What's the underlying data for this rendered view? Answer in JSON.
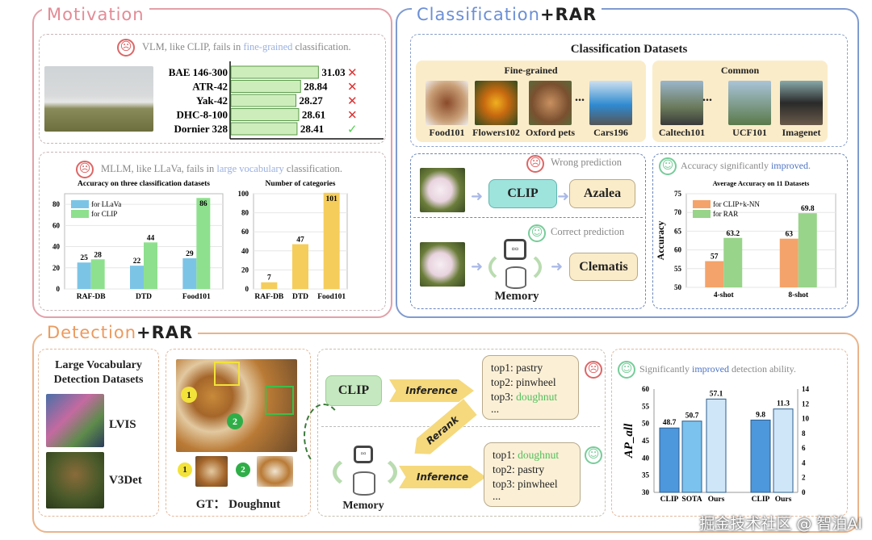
{
  "colors": {
    "motivation": "#e3a0a8",
    "classification": "#7f9bd0",
    "detection": "#eab48a",
    "llava": "#7cc4e6",
    "clip": "#8ee08e",
    "categories": "#f5cd5a",
    "knn": "#f4a36a",
    "rar": "#98d48a",
    "ap": "#5aa3e0"
  },
  "motivation": {
    "title": "Motivation",
    "vlm_note": {
      "pre": "VLM, like CLIP, fails in ",
      "highlight": "fine-grained",
      "post": " classification."
    },
    "fine_grained": {
      "rows": [
        {
          "label": "BAE 146-300",
          "value": 31.03,
          "mark": "✕"
        },
        {
          "label": "ATR-42",
          "value": 28.84,
          "mark": "✕"
        },
        {
          "label": "Yak-42",
          "value": 28.27,
          "mark": "✕"
        },
        {
          "label": "DHC-8-100",
          "value": 28.61,
          "mark": "✕"
        },
        {
          "label": "Dornier 328",
          "value": 28.41,
          "mark": "✓"
        }
      ]
    },
    "mllm_note": {
      "pre": "MLLM, like LLaVa, fails in ",
      "highlight": "large vocabulary",
      "post": " classification."
    }
  },
  "chart_data": [
    {
      "type": "bar",
      "title": "Accuracy on three classification datasets",
      "categories": [
        "RAF-DB",
        "DTD",
        "Food101"
      ],
      "series": [
        {
          "name": "for LLaVa",
          "values": [
            25,
            22,
            29
          ]
        },
        {
          "name": "for CLIP",
          "values": [
            28,
            44,
            86
          ]
        }
      ],
      "ylim": [
        0,
        90
      ],
      "yticks": [
        0,
        20,
        40,
        60,
        80
      ],
      "legend": "top-left",
      "grid": true
    },
    {
      "type": "bar",
      "title": "Number of categories",
      "categories": [
        "RAF-DB",
        "DTD",
        "Food101"
      ],
      "values": [
        7,
        47,
        101
      ],
      "ylim": [
        0,
        100
      ],
      "yticks": [
        0,
        20,
        40,
        60,
        80,
        100
      ],
      "grid": true
    },
    {
      "type": "bar",
      "title": "Average Accuracy on 11 Datasets",
      "ylabel": "Accuracy",
      "categories": [
        "4-shot",
        "8-shot"
      ],
      "series": [
        {
          "name": "for CLIP+k-NN",
          "values": [
            57,
            63
          ]
        },
        {
          "name": "for RAR",
          "values": [
            63.2,
            69.8
          ]
        }
      ],
      "ylim": [
        50,
        75
      ],
      "yticks": [
        50,
        55,
        60,
        65,
        70,
        75
      ],
      "legend": "top-left",
      "grid": true
    },
    {
      "type": "bar",
      "ylabel": "AP_all",
      "categories": [
        "CLIP",
        "SOTA",
        "Ours",
        "CLIP",
        "Ours"
      ],
      "values": [
        48.7,
        50.7,
        57.1,
        9.8,
        11.3
      ],
      "left_axis": [
        30,
        60
      ],
      "left_ticks": [
        30,
        35,
        40,
        45,
        50,
        55,
        60
      ],
      "right_axis": [
        0,
        14
      ],
      "right_ticks": [
        0,
        2,
        4,
        6,
        8,
        10,
        12,
        14
      ],
      "grid": false
    }
  ],
  "classification": {
    "title_a": "Classification",
    "title_b": "+RAR",
    "datasets_title": "Classification Datasets",
    "fine_grained_label": "Fine-grained",
    "common_label": "Common",
    "fine_grained": [
      "Food101",
      "Flowers102",
      "Oxford pets",
      "Cars196"
    ],
    "common": [
      "Caltech101",
      "UCF101",
      "Imagenet"
    ],
    "ellipsis": "...",
    "wrong_note": "Wrong prediction",
    "correct_note": "Correct prediction",
    "clip": "CLIP",
    "wrong_answer": "Azalea",
    "right_answer": "Clematis",
    "memory": "Memory",
    "acc_note": {
      "pre": "Accuracy significantly ",
      "highlight": "improved",
      "post": "."
    }
  },
  "detection": {
    "title_a": "Detection",
    "title_b": "+RAR",
    "datasets_title": "Large Vocabulary Detection Datasets",
    "datasets": [
      "LVIS",
      "V3Det"
    ],
    "gt": "GT： Doughnut",
    "markers": [
      "1",
      "2"
    ],
    "clip": "CLIP",
    "memory": "Memory",
    "inference": "Inference",
    "rerank": "Rerank",
    "before": [
      {
        "k": "top1:",
        "v": "pastry"
      },
      {
        "k": "top2:",
        "v": "pinwheel"
      },
      {
        "k": "top3:",
        "v": "doughnut"
      }
    ],
    "after": [
      {
        "k": "top1:",
        "v": "doughnut"
      },
      {
        "k": "top2:",
        "v": "pastry"
      },
      {
        "k": "top3:",
        "v": "pinwheel"
      }
    ],
    "more": "...",
    "det_note": {
      "pre": "Significantly ",
      "highlight": "improved",
      "post": " detection ability."
    }
  },
  "watermark": "掘金技术社区 @ 智泊AI"
}
